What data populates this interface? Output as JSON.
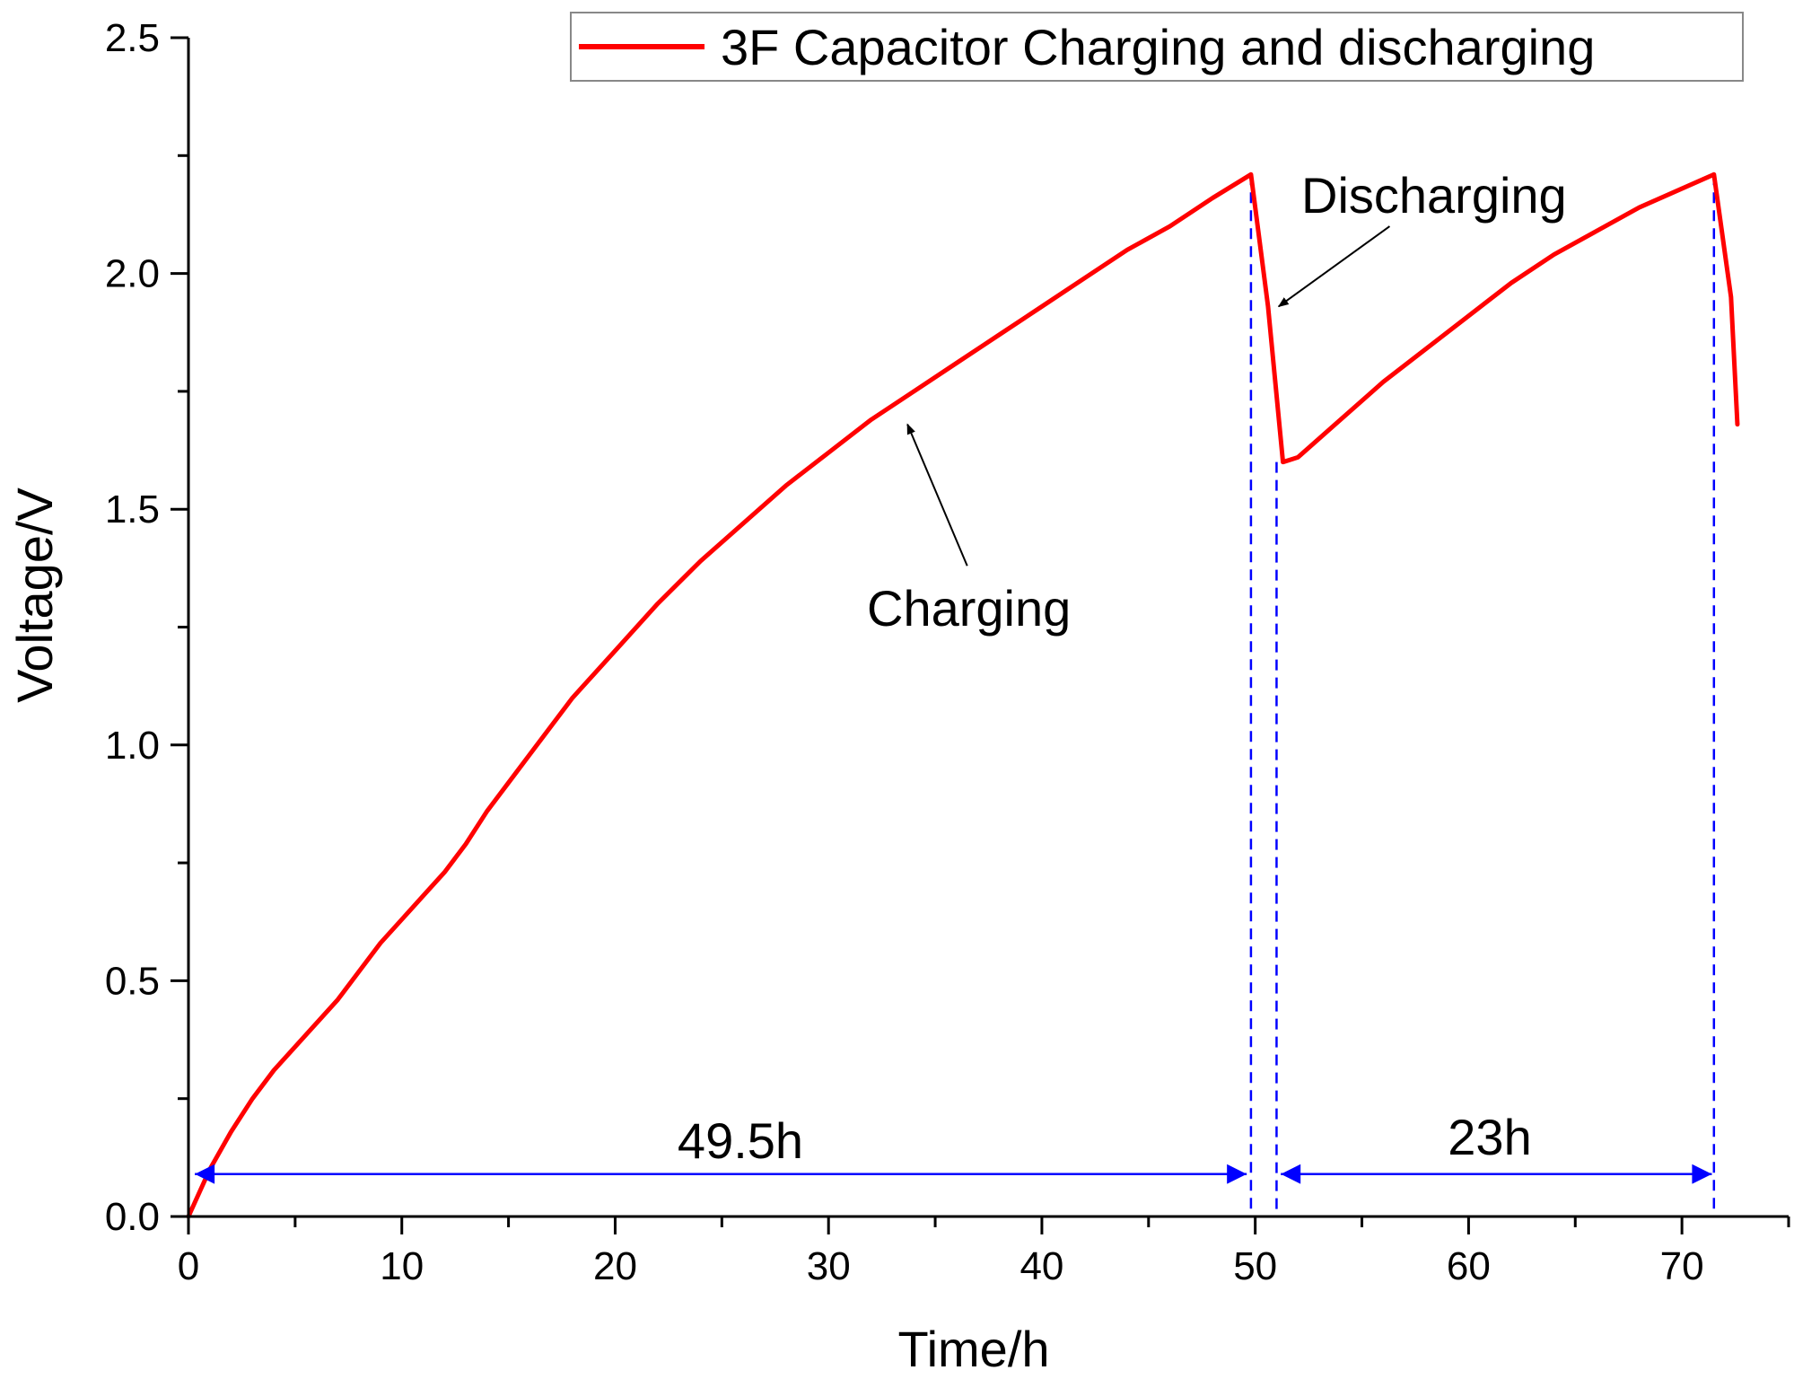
{
  "chart_data": {
    "type": "line",
    "title": "",
    "xlabel": "Time/h",
    "ylabel": "Voltage/V",
    "xlim": [
      0,
      75
    ],
    "ylim": [
      0,
      2.5
    ],
    "xticks": [
      0,
      10,
      20,
      30,
      40,
      50,
      60,
      70
    ],
    "xtick_labels": [
      "0",
      "10",
      "20",
      "30",
      "40",
      "50",
      "60",
      "70"
    ],
    "yticks": [
      0.0,
      0.5,
      1.0,
      1.5,
      2.0,
      2.5
    ],
    "ytick_labels": [
      "0.0",
      "0.5",
      "1.0",
      "1.5",
      "2.0",
      "2.5"
    ],
    "grid": false,
    "legend_position": "top-right",
    "series": [
      {
        "name": "3F Capacitor Charging and discharging",
        "color": "#ff0000",
        "x": [
          0,
          1,
          2,
          3,
          4,
          5,
          6,
          7,
          8,
          9,
          10,
          11,
          12,
          13,
          14,
          15,
          16,
          17,
          18,
          19,
          20,
          22,
          24,
          26,
          28,
          30,
          32,
          34,
          36,
          38,
          40,
          42,
          44,
          46,
          48,
          49.8,
          50.6,
          51.3,
          52,
          54,
          56,
          58,
          60,
          62,
          64,
          66,
          68,
          70,
          71.5,
          72.3,
          72.6
        ],
        "y": [
          0,
          0.1,
          0.18,
          0.25,
          0.31,
          0.36,
          0.41,
          0.46,
          0.52,
          0.58,
          0.63,
          0.68,
          0.73,
          0.79,
          0.86,
          0.92,
          0.98,
          1.04,
          1.1,
          1.15,
          1.2,
          1.3,
          1.39,
          1.47,
          1.55,
          1.62,
          1.69,
          1.75,
          1.81,
          1.87,
          1.93,
          1.99,
          2.05,
          2.1,
          2.16,
          2.21,
          1.93,
          1.6,
          1.61,
          1.69,
          1.77,
          1.84,
          1.91,
          1.98,
          2.04,
          2.09,
          2.14,
          2.18,
          2.21,
          1.95,
          1.68
        ]
      }
    ],
    "reference_lines": [
      {
        "orientation": "vertical",
        "x": 49.8,
        "y_top": 2.21,
        "color": "#0000ff",
        "style": "dashed"
      },
      {
        "orientation": "vertical",
        "x": 51.0,
        "y_top": 1.6,
        "color": "#0000ff",
        "style": "dashed"
      },
      {
        "orientation": "vertical",
        "x": 71.5,
        "y_top": 2.21,
        "color": "#0000ff",
        "style": "dashed"
      }
    ],
    "intervals": [
      {
        "label": "49.5h",
        "x_start": 0.3,
        "x_end": 49.6,
        "y": 0.09,
        "color": "#0000ff"
      },
      {
        "label": "23h",
        "x_start": 51.2,
        "x_end": 71.4,
        "y": 0.09,
        "color": "#0000ff"
      }
    ],
    "annotations": [
      {
        "text": "Charging",
        "text_x": 37,
        "text_y": 1.3,
        "arrow_from": [
          36.5,
          1.38
        ],
        "arrow_to": [
          33.7,
          1.68
        ]
      },
      {
        "text": "Discharging",
        "text_x": 58.5,
        "text_y": 2.18,
        "arrow_from": [
          56.3,
          2.1
        ],
        "arrow_to": [
          51.1,
          1.93
        ]
      }
    ]
  }
}
